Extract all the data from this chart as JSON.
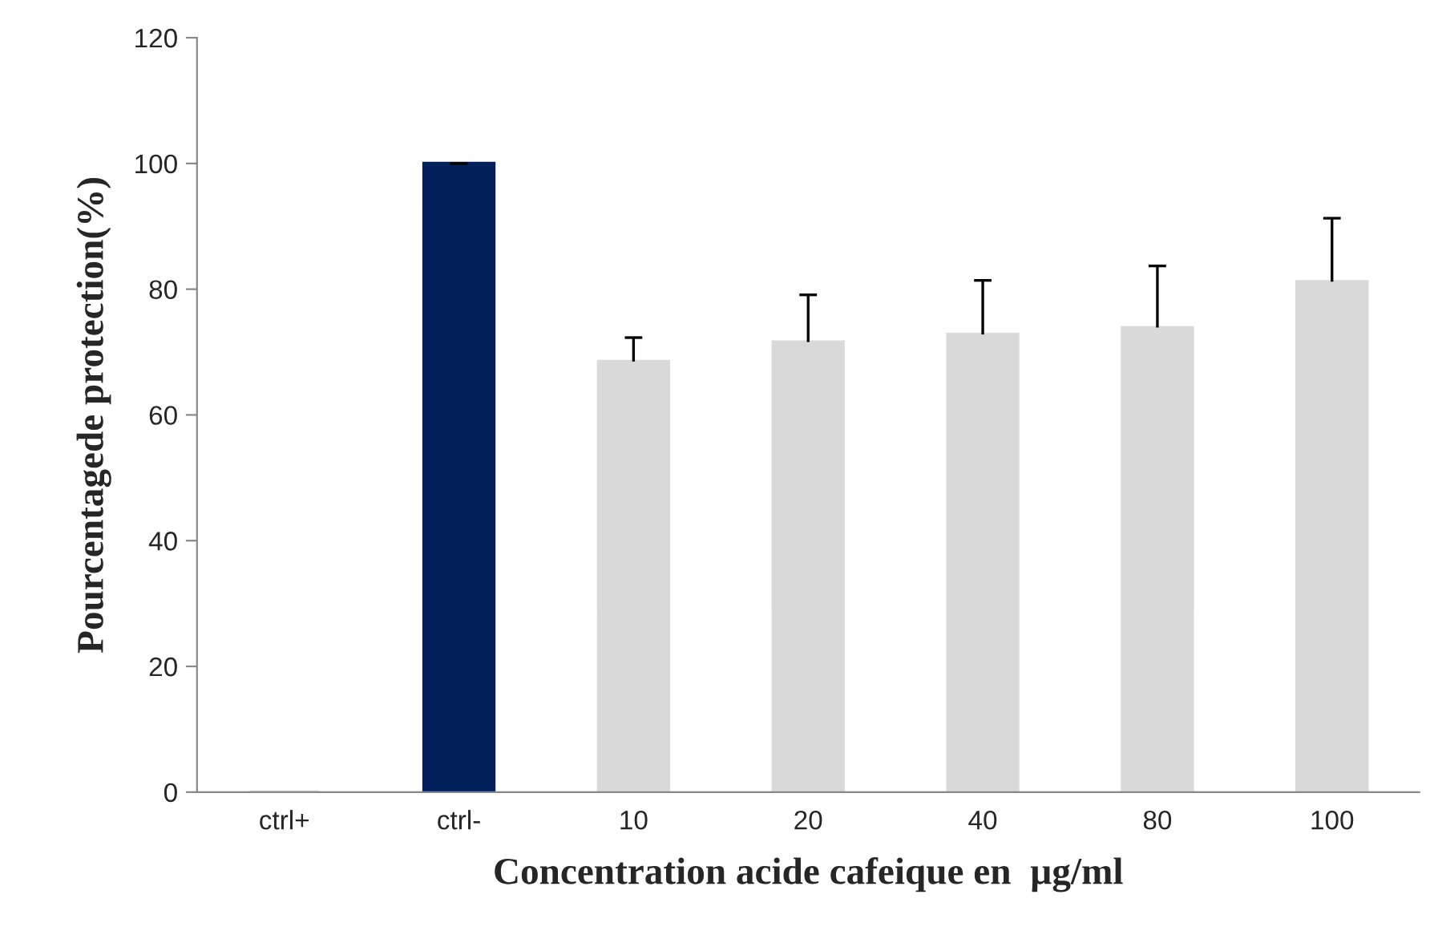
{
  "chart_data": {
    "type": "bar",
    "xlabel": "Concentration acide cafeique en  µg/ml",
    "ylabel": "Pourcentagede protection(%)",
    "categories": [
      "ctrl+",
      "ctrl-",
      "10",
      "20",
      "40",
      "80",
      "100"
    ],
    "values": [
      0,
      100,
      68.5,
      71.6,
      72.8,
      73.9,
      81.2
    ],
    "errors": [
      null,
      0,
      3.8,
      7.5,
      8.6,
      9.8,
      10.1
    ],
    "colors": [
      "#d9d9d9",
      "#001f5b",
      "#d9d9d9",
      "#d9d9d9",
      "#d9d9d9",
      "#d9d9d9",
      "#d9d9d9"
    ],
    "ylim": [
      0,
      120
    ],
    "yticks": [
      0,
      20,
      40,
      60,
      80,
      100,
      120
    ],
    "grid": false,
    "legend": false
  }
}
